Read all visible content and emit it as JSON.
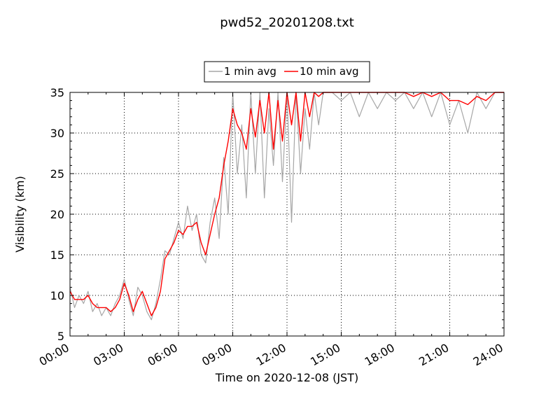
{
  "chart_data": {
    "type": "line",
    "title": "pwd52_20201208.txt",
    "xlabel": "Time on 2020-12-08 (JST)",
    "ylabel": "Visibility (km)",
    "x_unit": "hours",
    "xlim": [
      0,
      24
    ],
    "ylim": [
      5,
      35
    ],
    "x_tick_labels": [
      "00:00",
      "03:00",
      "06:00",
      "09:00",
      "12:00",
      "15:00",
      "18:00",
      "21:00",
      "24:00"
    ],
    "y_ticks": [
      5,
      10,
      15,
      20,
      25,
      30,
      35
    ],
    "grid": true,
    "legend": {
      "position": "top-center"
    },
    "series": [
      {
        "name": "1 min avg",
        "color": "#a6a6a6",
        "x": [
          0,
          0.25,
          0.5,
          0.75,
          1.0,
          1.25,
          1.5,
          1.75,
          2.0,
          2.25,
          2.5,
          2.75,
          3.0,
          3.25,
          3.5,
          3.75,
          4.0,
          4.25,
          4.5,
          4.75,
          5.0,
          5.25,
          5.5,
          5.75,
          6.0,
          6.25,
          6.5,
          6.75,
          7.0,
          7.25,
          7.5,
          7.75,
          8.0,
          8.25,
          8.5,
          8.75,
          9.0,
          9.25,
          9.5,
          9.75,
          10.0,
          10.25,
          10.5,
          10.75,
          11.0,
          11.25,
          11.5,
          11.75,
          12.0,
          12.25,
          12.5,
          12.75,
          13.0,
          13.25,
          13.5,
          13.75,
          14.0,
          14.5,
          15.0,
          15.5,
          16.0,
          16.5,
          17.0,
          17.5,
          18.0,
          18.5,
          19.0,
          19.5,
          20.0,
          20.5,
          21.0,
          21.5,
          22.0,
          22.5,
          23.0,
          23.5,
          24.0
        ],
        "y": [
          11,
          8.5,
          10,
          9,
          10.5,
          8,
          9,
          7.5,
          8.5,
          7.5,
          9,
          10,
          12,
          9.5,
          7.5,
          11,
          10,
          8,
          7,
          9,
          12,
          15.5,
          15,
          17,
          19,
          17,
          21,
          18,
          20,
          15,
          14,
          19,
          22,
          17,
          27,
          20,
          35,
          25,
          31,
          22,
          35,
          25,
          35,
          22,
          33,
          26,
          35,
          24,
          35,
          19,
          35,
          25,
          33,
          28,
          35,
          31,
          35,
          35,
          34,
          35,
          32,
          35,
          33,
          35,
          34,
          35,
          33,
          35,
          32,
          35,
          31,
          34,
          30,
          35,
          33,
          35,
          35
        ]
      },
      {
        "name": "10 min avg",
        "color": "#ff0000",
        "x": [
          0,
          0.25,
          0.5,
          0.75,
          1.0,
          1.25,
          1.5,
          1.75,
          2.0,
          2.25,
          2.5,
          2.75,
          3.0,
          3.25,
          3.5,
          3.75,
          4.0,
          4.25,
          4.5,
          4.75,
          5.0,
          5.25,
          5.5,
          5.75,
          6.0,
          6.25,
          6.5,
          6.75,
          7.0,
          7.25,
          7.5,
          7.75,
          8.0,
          8.25,
          8.5,
          8.75,
          9.0,
          9.25,
          9.5,
          9.75,
          10.0,
          10.25,
          10.5,
          10.75,
          11.0,
          11.25,
          11.5,
          11.75,
          12.0,
          12.25,
          12.5,
          12.75,
          13.0,
          13.25,
          13.5,
          13.75,
          14.0,
          14.5,
          15.0,
          15.5,
          16.0,
          16.5,
          17.0,
          17.5,
          18.0,
          18.5,
          19.0,
          19.5,
          20.0,
          20.5,
          21.0,
          21.5,
          22.0,
          22.5,
          23.0,
          23.5,
          24.0
        ],
        "y": [
          10.5,
          9.5,
          9.5,
          9.5,
          10,
          9,
          8.5,
          8.5,
          8.5,
          8,
          8.5,
          9.5,
          11.5,
          10,
          8,
          9.5,
          10.5,
          9,
          7.5,
          8.5,
          10.5,
          14.5,
          15.5,
          16.5,
          18,
          17.5,
          18.5,
          18.5,
          19,
          16.5,
          15,
          17.5,
          20,
          22,
          26,
          29,
          33,
          31,
          30,
          28,
          33,
          29.5,
          34,
          30,
          35,
          28,
          34,
          29,
          35,
          31,
          35,
          29,
          35,
          32,
          35,
          34.5,
          35,
          35,
          35,
          35,
          35,
          35,
          35,
          35,
          35,
          35,
          34.5,
          35,
          34.5,
          35,
          34,
          34,
          33.5,
          34.5,
          34,
          35,
          35
        ]
      }
    ]
  }
}
